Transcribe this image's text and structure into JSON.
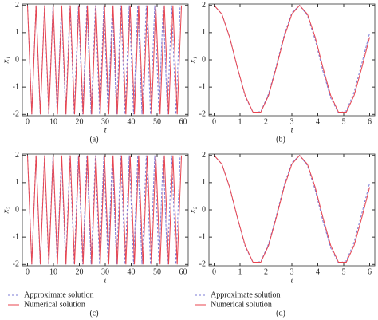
{
  "chart_data": [
    {
      "type": "line",
      "caption": "(a)",
      "xlabel": "t",
      "ylabel": "x₁",
      "xlim": [
        -2,
        62
      ],
      "xticks": [
        0,
        10,
        20,
        30,
        40,
        50,
        60
      ],
      "ylim": [
        -2.05,
        2.05
      ],
      "yticks": [
        -2,
        -1,
        0,
        1,
        2
      ],
      "series": [
        {
          "name": "Approximate solution",
          "color": "#7b7bd6",
          "linestyle": "dashed",
          "x": [
            0,
            1.64,
            3.27,
            4.91,
            6.54,
            8.18,
            9.82,
            11.45,
            13.09,
            14.72,
            16.36,
            18,
            19.63,
            21.27,
            22.9,
            24.54,
            26.18,
            27.81,
            29.45,
            31.08,
            32.72,
            34.36,
            35.99,
            37.63,
            39.26,
            40.9,
            42.54,
            44.17,
            45.81,
            47.44,
            49.08,
            50.72,
            52.35,
            53.99,
            55.62,
            57.26,
            58.9
          ],
          "values": [
            2,
            -2,
            2,
            -2,
            2,
            -2,
            2,
            -2,
            2,
            -2,
            2,
            -2,
            2,
            -2,
            2,
            -2,
            2,
            -2,
            2,
            -2,
            2,
            -2,
            2,
            -2,
            2,
            -2,
            2,
            -2,
            2,
            -2,
            2,
            -2,
            2,
            -2,
            2,
            -2,
            2
          ]
        },
        {
          "name": "Numerical solution",
          "color": "#e8454f",
          "linestyle": "solid",
          "x": [
            0,
            1.65,
            3.3,
            4.95,
            6.6,
            8.25,
            9.9,
            11.55,
            13.2,
            14.85,
            16.5,
            18.15,
            19.8,
            21.45,
            23.1,
            24.75,
            26.4,
            28.05,
            29.7,
            31.35,
            33,
            34.65,
            36.3,
            37.95,
            39.6,
            41.25,
            42.9,
            44.55,
            46.2,
            47.85,
            49.5,
            51.15,
            52.8,
            54.45,
            56.1,
            57.75,
            59.4
          ],
          "values": [
            2,
            -2,
            2,
            -2,
            2,
            -2,
            2,
            -2,
            2,
            -2,
            2,
            -2,
            2,
            -2,
            2,
            -2,
            2,
            -2,
            2,
            -2,
            2,
            -2,
            2,
            -2,
            2,
            -2,
            2,
            -2,
            2,
            -2,
            2,
            -2,
            2,
            -2,
            2,
            -2,
            2
          ]
        }
      ]
    },
    {
      "type": "line",
      "caption": "(b)",
      "xlabel": "t",
      "ylabel": "x₁",
      "xlim": [
        -0.2,
        6.2
      ],
      "xticks": [
        0,
        1,
        2,
        3,
        4,
        5,
        6
      ],
      "ylim": [
        -2.05,
        2.05
      ],
      "yticks": [
        -2,
        -1,
        0,
        1,
        2
      ],
      "series": [
        {
          "name": "Approximate solution",
          "color": "#7b7bd6",
          "linestyle": "dashed",
          "x": [
            0,
            0.3,
            0.6,
            0.9,
            1.2,
            1.5,
            1.8,
            2.1,
            2.4,
            2.7,
            3.0,
            3.3,
            3.6,
            3.9,
            4.2,
            4.5,
            4.8,
            5.1,
            5.4,
            5.7,
            6.0
          ],
          "values": [
            2,
            1.68,
            0.81,
            -0.31,
            -1.34,
            -1.93,
            -1.9,
            -1.25,
            -0.21,
            0.91,
            1.73,
            2,
            1.63,
            0.73,
            -0.42,
            -1.4,
            -1.95,
            -1.87,
            -1.19,
            -0.12,
            0.98
          ]
        },
        {
          "name": "Numerical solution",
          "color": "#e8454f",
          "linestyle": "solid",
          "x": [
            0,
            0.3,
            0.6,
            0.9,
            1.2,
            1.5,
            1.8,
            2.1,
            2.4,
            2.7,
            3.0,
            3.3,
            3.6,
            3.9,
            4.2,
            4.5,
            4.8,
            5.1,
            5.4,
            5.7,
            6.0
          ],
          "values": [
            2,
            1.68,
            0.83,
            -0.29,
            -1.31,
            -1.92,
            -1.92,
            -1.31,
            -0.28,
            0.83,
            1.68,
            2,
            1.68,
            0.83,
            -0.29,
            -1.31,
            -1.92,
            -1.92,
            -1.31,
            -0.28,
            0.83
          ]
        }
      ]
    },
    {
      "type": "line",
      "caption": "(c)",
      "xlabel": "t",
      "ylabel": "x₂",
      "legend": "below",
      "xlim": [
        -2,
        62
      ],
      "xticks": [
        0,
        10,
        20,
        30,
        40,
        50,
        60
      ],
      "ylim": [
        -2.05,
        2.05
      ],
      "yticks": [
        -2,
        -1,
        0,
        1,
        2
      ],
      "series": [
        {
          "name": "Approximate solution",
          "color": "#7b7bd6",
          "linestyle": "dashed",
          "x": [
            0,
            1.64,
            3.27,
            4.91,
            6.54,
            8.18,
            9.82,
            11.45,
            13.09,
            14.72,
            16.36,
            18,
            19.63,
            21.27,
            22.9,
            24.54,
            26.18,
            27.81,
            29.45,
            31.08,
            32.72,
            34.36,
            35.99,
            37.63,
            39.26,
            40.9,
            42.54,
            44.17,
            45.81,
            47.44,
            49.08,
            50.72,
            52.35,
            53.99,
            55.62,
            57.26,
            58.9
          ],
          "values": [
            2,
            -2,
            2,
            -2,
            2,
            -2,
            2,
            -2,
            2,
            -2,
            2,
            -2,
            2,
            -2,
            2,
            -2,
            2,
            -2,
            2,
            -2,
            2,
            -2,
            2,
            -2,
            2,
            -2,
            2,
            -2,
            2,
            -2,
            2,
            -2,
            2,
            -2,
            2,
            -2,
            2
          ]
        },
        {
          "name": "Numerical solution",
          "color": "#e8454f",
          "linestyle": "solid",
          "x": [
            0,
            1.65,
            3.3,
            4.95,
            6.6,
            8.25,
            9.9,
            11.55,
            13.2,
            14.85,
            16.5,
            18.15,
            19.8,
            21.45,
            23.1,
            24.75,
            26.4,
            28.05,
            29.7,
            31.35,
            33,
            34.65,
            36.3,
            37.95,
            39.6,
            41.25,
            42.9,
            44.55,
            46.2,
            47.85,
            49.5,
            51.15,
            52.8,
            54.45,
            56.1,
            57.75,
            59.4
          ],
          "values": [
            2,
            -2,
            2,
            -2,
            2,
            -2,
            2,
            -2,
            2,
            -2,
            2,
            -2,
            2,
            -2,
            2,
            -2,
            2,
            -2,
            2,
            -2,
            2,
            -2,
            2,
            -2,
            2,
            -2,
            2,
            -2,
            2,
            -2,
            2,
            -2,
            2,
            -2,
            2,
            -2,
            2
          ]
        }
      ]
    },
    {
      "type": "line",
      "caption": "(d)",
      "xlabel": "t",
      "ylabel": "x₂",
      "legend": "below",
      "xlim": [
        -0.2,
        6.2
      ],
      "xticks": [
        0,
        1,
        2,
        3,
        4,
        5,
        6
      ],
      "ylim": [
        -2.05,
        2.05
      ],
      "yticks": [
        -2,
        -1,
        0,
        1,
        2
      ],
      "series": [
        {
          "name": "Approximate solution",
          "color": "#7b7bd6",
          "linestyle": "dashed",
          "x": [
            0,
            0.3,
            0.6,
            0.9,
            1.2,
            1.5,
            1.8,
            2.1,
            2.4,
            2.7,
            3.0,
            3.3,
            3.6,
            3.9,
            4.2,
            4.5,
            4.8,
            5.1,
            5.4,
            5.7,
            6.0
          ],
          "values": [
            2,
            1.68,
            0.81,
            -0.31,
            -1.34,
            -1.93,
            -1.9,
            -1.25,
            -0.21,
            0.91,
            1.73,
            2,
            1.63,
            0.73,
            -0.42,
            -1.4,
            -1.95,
            -1.87,
            -1.19,
            -0.12,
            0.98
          ]
        },
        {
          "name": "Numerical solution",
          "color": "#e8454f",
          "linestyle": "solid",
          "x": [
            0,
            0.3,
            0.6,
            0.9,
            1.2,
            1.5,
            1.8,
            2.1,
            2.4,
            2.7,
            3.0,
            3.3,
            3.6,
            3.9,
            4.2,
            4.5,
            4.8,
            5.1,
            5.4,
            5.7,
            6.0
          ],
          "values": [
            2,
            1.68,
            0.83,
            -0.29,
            -1.31,
            -1.92,
            -1.92,
            -1.31,
            -0.28,
            0.83,
            1.68,
            2,
            1.68,
            0.83,
            -0.29,
            -1.31,
            -1.92,
            -1.92,
            -1.31,
            -0.28,
            0.83
          ]
        }
      ]
    }
  ]
}
